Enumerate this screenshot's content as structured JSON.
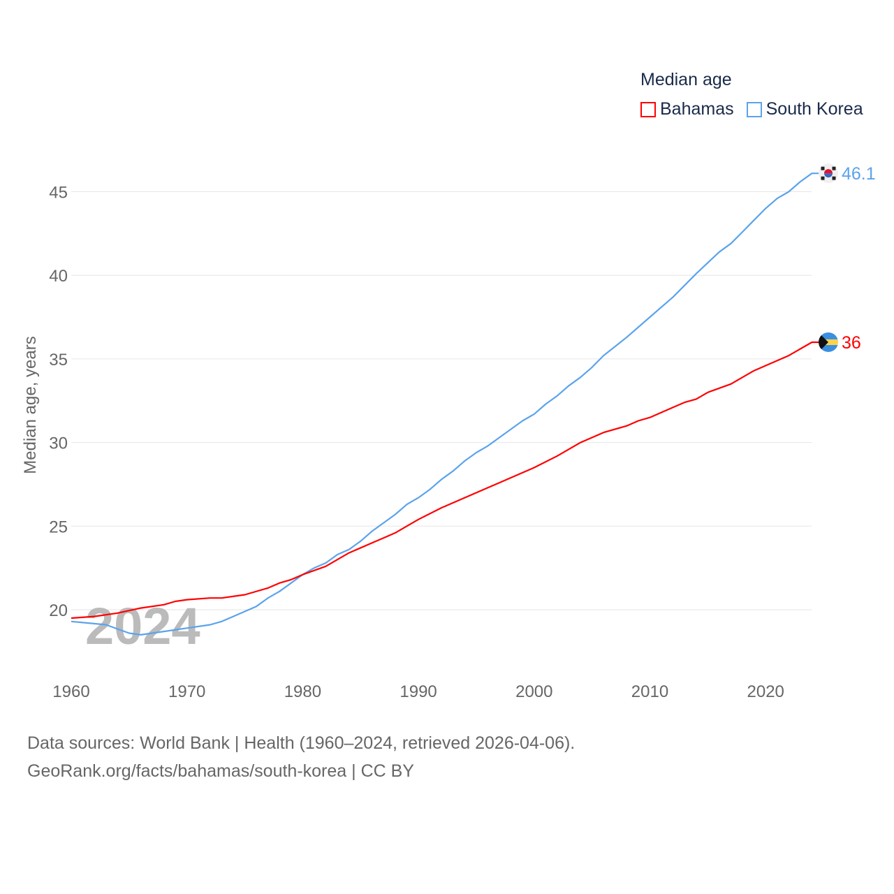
{
  "chart_data": {
    "type": "line",
    "title": "Median age",
    "xlabel": "",
    "ylabel": "Median age, years",
    "xlim": [
      1960,
      2024
    ],
    "ylim": [
      16.5,
      47
    ],
    "x_ticks": [
      "1960",
      "1970",
      "1980",
      "1990",
      "2000",
      "2010",
      "2020"
    ],
    "y_ticks": [
      "20",
      "25",
      "30",
      "35",
      "40",
      "45"
    ],
    "grid": true,
    "legend_placement": "top-right",
    "watermark_year": "2024",
    "series": [
      {
        "name": "Bahamas",
        "color": "#ff0000",
        "end_label": "36",
        "flag": "bahamas-flag",
        "x": [
          1960,
          1962,
          1964,
          1966,
          1968,
          1969,
          1970,
          1972,
          1973,
          1975,
          1977,
          1978,
          1979,
          1980,
          1982,
          1983,
          1984,
          1986,
          1987,
          1988,
          1989,
          1990,
          1992,
          1994,
          1996,
          1997,
          1998,
          2000,
          2002,
          2003,
          2004,
          2006,
          2008,
          2009,
          2010,
          2012,
          2013,
          2014,
          2015,
          2017,
          2018,
          2019,
          2020,
          2022,
          2023,
          2024
        ],
        "values": [
          19.5,
          19.6,
          19.8,
          20.1,
          20.3,
          20.5,
          20.6,
          20.7,
          20.7,
          20.9,
          21.3,
          21.6,
          21.8,
          22.1,
          22.6,
          23.0,
          23.4,
          24.0,
          24.3,
          24.6,
          25.0,
          25.4,
          26.1,
          26.7,
          27.3,
          27.6,
          27.9,
          28.5,
          29.2,
          29.6,
          30.0,
          30.6,
          31.0,
          31.3,
          31.5,
          32.1,
          32.4,
          32.6,
          33.0,
          33.5,
          33.9,
          34.3,
          34.6,
          35.2,
          35.6,
          36.0
        ]
      },
      {
        "name": "South Korea",
        "color": "#5ba3ec",
        "end_label": "46.1",
        "flag": "south-korea-flag",
        "x": [
          1960,
          1963,
          1965,
          1966,
          1967,
          1968,
          1970,
          1972,
          1973,
          1974,
          1976,
          1977,
          1978,
          1980,
          1981,
          1982,
          1983,
          1984,
          1985,
          1986,
          1988,
          1989,
          1990,
          1991,
          1992,
          1993,
          1994,
          1995,
          1996,
          1997,
          1998,
          1999,
          2000,
          2001,
          2002,
          2003,
          2004,
          2005,
          2006,
          2008,
          2010,
          2012,
          2014,
          2016,
          2017,
          2018,
          2019,
          2020,
          2021,
          2022,
          2023,
          2024
        ],
        "values": [
          19.3,
          19.1,
          18.6,
          18.5,
          18.6,
          18.7,
          18.9,
          19.1,
          19.3,
          19.6,
          20.2,
          20.7,
          21.1,
          22.1,
          22.5,
          22.8,
          23.3,
          23.6,
          24.1,
          24.7,
          25.7,
          26.3,
          26.7,
          27.2,
          27.8,
          28.3,
          28.9,
          29.4,
          29.8,
          30.3,
          30.8,
          31.3,
          31.7,
          32.3,
          32.8,
          33.4,
          33.9,
          34.5,
          35.2,
          36.3,
          37.5,
          38.7,
          40.1,
          41.4,
          41.9,
          42.6,
          43.3,
          44.0,
          44.6,
          45.0,
          45.6,
          46.1
        ]
      }
    ]
  },
  "source": {
    "line1": "Data sources: World Bank | Health (1960–2024, retrieved 2026-04-06).",
    "line2": "GeoRank.org/facts/bahamas/south-korea | CC BY"
  }
}
